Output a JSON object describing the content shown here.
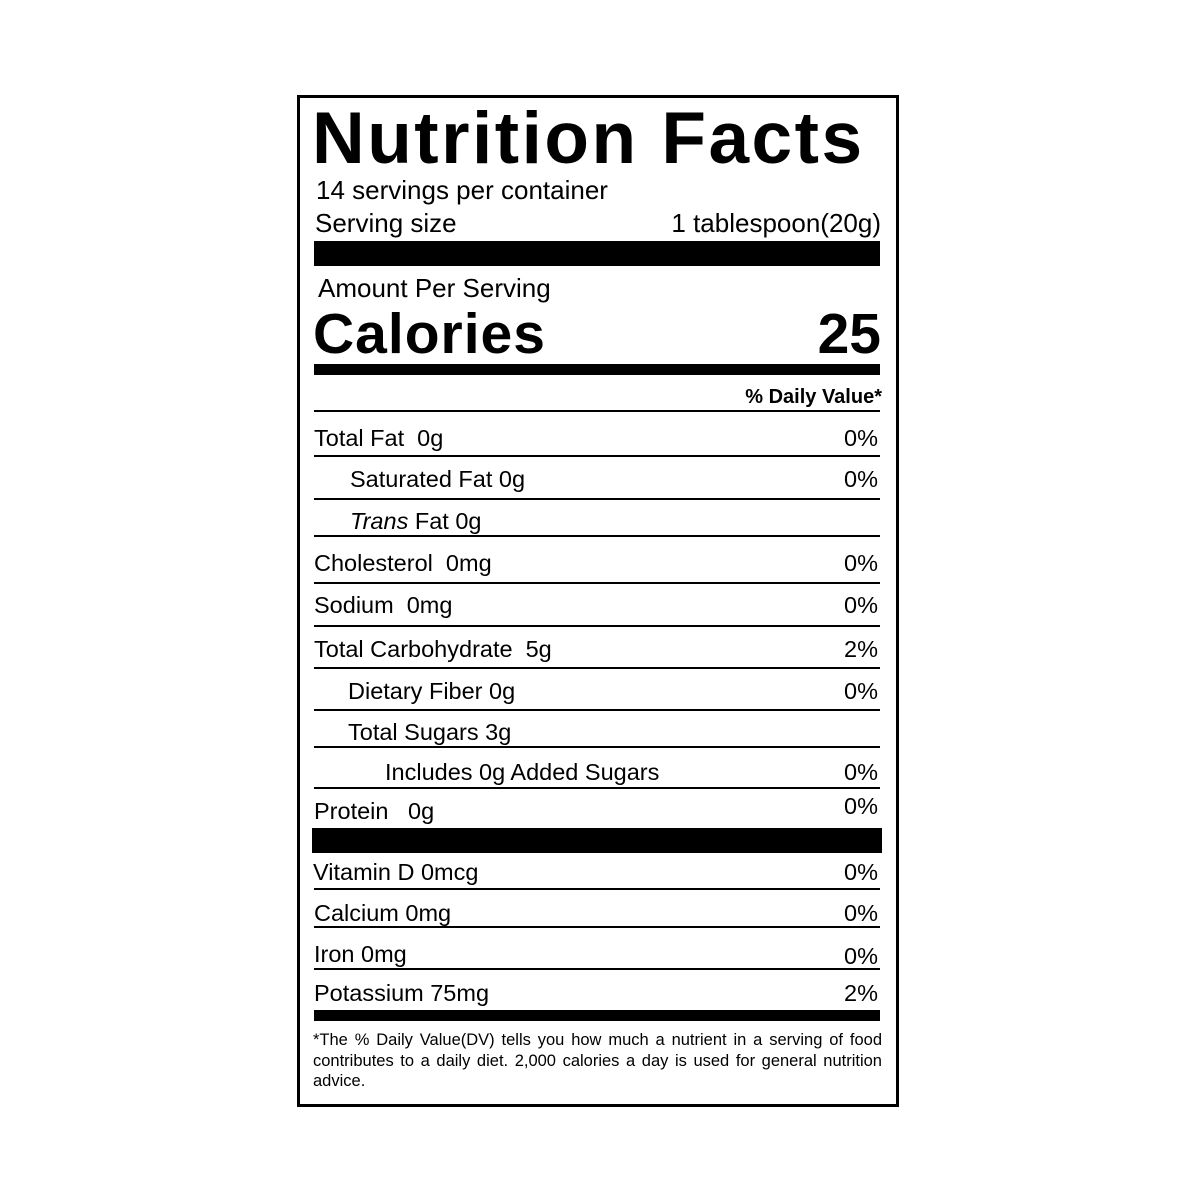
{
  "title": "Nutrition Facts",
  "servings_per_container": "14 servings per container",
  "serving_size_label": "Serving size",
  "serving_size_value": "1 tablespoon(20g)",
  "amount_per_serving": "Amount Per Serving",
  "calories_label": "Calories",
  "calories_value": "25",
  "daily_value_header": "% Daily Value*",
  "nutrients": [
    {
      "name": "Total Fat  0g",
      "dv": "0%"
    },
    {
      "name": "Saturated Fat 0g",
      "dv": "0%"
    },
    {
      "name_italic": "Trans",
      "name": " Fat 0g",
      "dv": ""
    },
    {
      "name": "Cholesterol  0mg",
      "dv": "0%"
    },
    {
      "name": "Sodium  0mg",
      "dv": "0%"
    },
    {
      "name": "Total Carbohydrate  5g",
      "dv": "2%"
    },
    {
      "name": "Dietary Fiber 0g",
      "dv": "0%"
    },
    {
      "name": "Total Sugars 3g",
      "dv": ""
    },
    {
      "name": "Includes 0g Added Sugars",
      "dv": "0%"
    },
    {
      "name": "Protein   0g",
      "dv": "0%"
    }
  ],
  "vitamins": [
    {
      "name": "Vitamin D 0mcg",
      "dv": "0%"
    },
    {
      "name": "Calcium 0mg",
      "dv": "0%"
    },
    {
      "name": "Iron 0mg",
      "dv": "0%"
    },
    {
      "name": "Potassium 75mg",
      "dv": "2%"
    }
  ],
  "footnote": "*The % Daily Value(DV) tells you how much a nutrient in a serving of food contributes to a daily diet. 2,000 calories a day is used for general nutrition advice."
}
